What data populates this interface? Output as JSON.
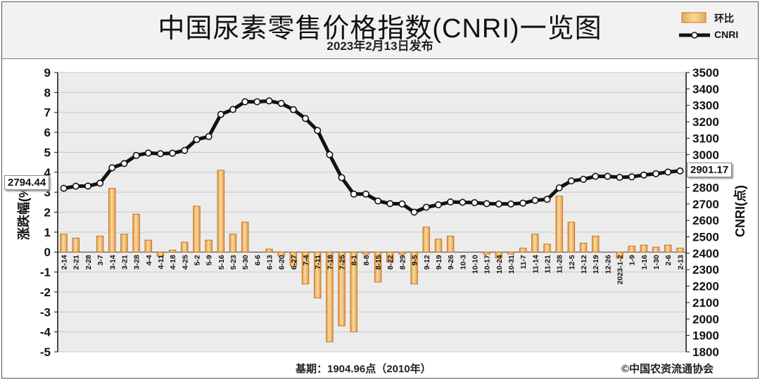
{
  "header": {
    "title": "中国尿素零售价格指数(CNRI)一览图",
    "subtitle": "2023年2月13日发布"
  },
  "legend": {
    "bar_label": "环比",
    "line_label": "CNRI"
  },
  "footer": {
    "base": "基期：1904.96点（2010年）",
    "credit": "©中国农资流通协会"
  },
  "callouts": {
    "left": "2794.44",
    "right": "2901.17"
  },
  "colors": {
    "bar_fill": "#f2c879",
    "bar_edge": "#c9731e",
    "line": "#111111",
    "grid": "#c8c8c8",
    "plot_bg": "#ececec",
    "header_bg": "#f2f2f2"
  },
  "chart_data": {
    "type": "bar+line",
    "categories": [
      "2-14",
      "2-21",
      "2-28",
      "3-7",
      "3-14",
      "3-21",
      "3-28",
      "4-4",
      "4-11",
      "4-18",
      "4-25",
      "5-2",
      "5-9",
      "5-16",
      "5-23",
      "5-30",
      "6-6",
      "6-13",
      "6-20",
      "6-27",
      "7-4",
      "7-11",
      "7-18",
      "7-25",
      "8-1",
      "8-8",
      "8-15",
      "8-22",
      "8-29",
      "9-5",
      "9-12",
      "9-19",
      "9-26",
      "10-3",
      "10-10",
      "10-17",
      "10-24",
      "10-31",
      "11-7",
      "11-14",
      "11-21",
      "11-28",
      "12-5",
      "12-12",
      "12-19",
      "12-26",
      "2023-1-2",
      "1-9",
      "1-16",
      "1-30",
      "2-6",
      "2-13"
    ],
    "series": [
      {
        "name": "环比",
        "axis": "left",
        "values": [
          0.9,
          0.7,
          0,
          0.8,
          3.2,
          0.9,
          1.9,
          0.6,
          -0.2,
          0.1,
          0.5,
          2.3,
          0.6,
          4.1,
          0.9,
          1.5,
          0,
          0.15,
          -0.2,
          -0.7,
          -1.6,
          -2.3,
          -4.5,
          -3.7,
          -4.0,
          -0.1,
          -1.5,
          -0.5,
          -0.1,
          -1.6,
          1.25,
          0.65,
          0.8,
          0,
          0,
          -0.1,
          -0.3,
          -0.1,
          0.2,
          0.9,
          0.4,
          2.8,
          1.5,
          0.45,
          0.8,
          0,
          -0.3,
          0.3,
          0.35,
          0.25,
          0.35,
          0.2
        ]
      },
      {
        "name": "CNRI",
        "axis": "right",
        "values": [
          2795,
          2808,
          2809,
          2826,
          2920,
          2946,
          2995,
          3010,
          3006,
          3009,
          3026,
          3092,
          3110,
          3245,
          3275,
          3322,
          3322,
          3327,
          3312,
          3274,
          3220,
          3147,
          3000,
          2860,
          2760,
          2760,
          2718,
          2702,
          2700,
          2650,
          2680,
          2695,
          2712,
          2710,
          2708,
          2702,
          2700,
          2700,
          2705,
          2722,
          2728,
          2798,
          2840,
          2850,
          2868,
          2868,
          2862,
          2865,
          2876,
          2884,
          2894,
          2901.17
        ]
      }
    ],
    "y_left": {
      "label": "涨跌幅(%)",
      "range": [
        -5,
        9
      ],
      "ticks": [
        -5,
        -4,
        -3,
        -2,
        -1,
        0,
        1,
        2,
        3,
        4,
        5,
        6,
        7,
        8,
        9
      ]
    },
    "y_right": {
      "label": "CNRI(点)",
      "range": [
        1800,
        3500
      ],
      "ticks": [
        1800,
        1900,
        2000,
        2100,
        2200,
        2300,
        2400,
        2500,
        2600,
        2700,
        2800,
        2900,
        3000,
        3100,
        3200,
        3300,
        3400,
        3500
      ]
    },
    "grid": true,
    "legend_position": "top-right"
  }
}
